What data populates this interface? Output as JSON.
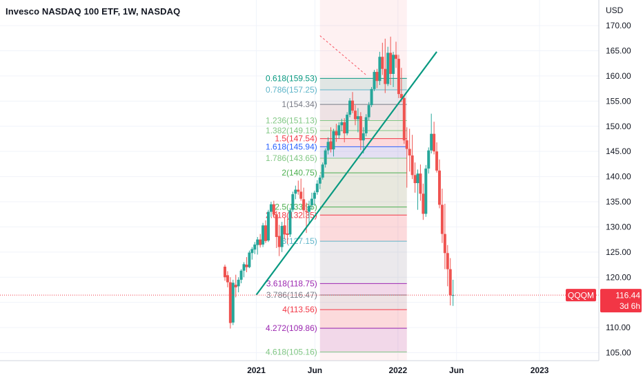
{
  "title": "Invesco NASDAQ 100 ETF, 1W, NASDAQ",
  "currency": "USD",
  "colors": {
    "up": "#26a69a",
    "down": "#ef5350",
    "trendline": "#089981",
    "badge": "#f23645",
    "grid": "#f0f3fa",
    "axis_border": "#d1d4dc"
  },
  "chart_data": {
    "type": "candlestick",
    "y_axis": {
      "min": 104,
      "max": 172,
      "ticks": [
        105,
        110,
        115,
        120,
        125,
        130,
        135,
        140,
        145,
        150,
        155,
        160,
        165,
        170
      ],
      "tick_labels": [
        "105.00",
        "110.00",
        "115.00",
        "120.00",
        "125.00",
        "130.00",
        "135.00",
        "140.00",
        "145.00",
        "150.00",
        "155.00",
        "160.00",
        "165.00",
        "170.00"
      ]
    },
    "x_axis": {
      "start": "2020-10-12",
      "end": "2023-03-13",
      "ticks": [
        {
          "date": "2021-01-01",
          "label": "2021"
        },
        {
          "date": "2021-06-01",
          "label": "Jun"
        },
        {
          "date": "2022-01-01",
          "label": "2022"
        },
        {
          "date": "2022-06-01",
          "label": "Jun"
        },
        {
          "date": "2023-01-01",
          "label": "2023"
        }
      ]
    },
    "current_price": {
      "symbol": "QQQM",
      "value": "116.44",
      "countdown": "3d 6h",
      "price": 116.44
    },
    "highlight_zone": {
      "from": "2021-06-14",
      "to": "2022-01-24"
    },
    "fib_extension": {
      "from": "2021-06-14",
      "to": "2022-01-24",
      "levels": [
        {
          "ratio": 0.618,
          "label": "0.618(159.53)",
          "price": 159.53,
          "color": "#089981"
        },
        {
          "ratio": 0.786,
          "label": "0.786(157.25)",
          "price": 157.25,
          "color": "#5fb5c9"
        },
        {
          "ratio": 1,
          "label": "1(154.34)",
          "price": 154.34,
          "color": "#787b86"
        },
        {
          "ratio": 1.236,
          "label": "1.236(151.13)",
          "price": 151.13,
          "color": "#81c784"
        },
        {
          "ratio": 1.382,
          "label": "1.382(149.15)",
          "price": 149.15,
          "color": "#81c784"
        },
        {
          "ratio": 1.5,
          "label": "1.5(147.54)",
          "price": 147.54,
          "color": "#f23645"
        },
        {
          "ratio": 1.618,
          "label": "1.618(145.94)",
          "price": 145.94,
          "color": "#2962ff"
        },
        {
          "ratio": 1.786,
          "label": "1.786(143.65)",
          "price": 143.65,
          "color": "#81c784"
        },
        {
          "ratio": 2,
          "label": "2(140.75)",
          "price": 140.75,
          "color": "#4caf50"
        },
        {
          "ratio": 2.5,
          "label": "2.5(133.95)",
          "price": 133.95,
          "color": "#4caf50"
        },
        {
          "ratio": 2.618,
          "label": "2.618(132.35)",
          "price": 132.35,
          "color": "#f23645"
        },
        {
          "ratio": 3,
          "label": "3(127.15)",
          "price": 127.15,
          "color": "#5fb5c9"
        },
        {
          "ratio": 3.618,
          "label": "3.618(118.75)",
          "price": 118.75,
          "color": "#9c27b0"
        },
        {
          "ratio": 3.786,
          "label": "3.786(116.47)",
          "price": 116.47,
          "color": "#787b86"
        },
        {
          "ratio": 4,
          "label": "4(113.56)",
          "price": 113.56,
          "color": "#f23645"
        },
        {
          "ratio": 4.272,
          "label": "4.272(109.86)",
          "price": 109.86,
          "color": "#9c27b0"
        },
        {
          "ratio": 4.618,
          "label": "4.618(105.16)",
          "price": 105.16,
          "color": "#81c784"
        }
      ]
    },
    "trendline": {
      "from": {
        "date": "2021-01-01",
        "price": 116.5
      },
      "to": {
        "date": "2022-04-11",
        "price": 164.8
      }
    },
    "dashed_line": {
      "from": {
        "date": "2021-06-14",
        "price": 168.0
      },
      "to": {
        "date": "2021-10-11",
        "price": 160.2
      }
    },
    "candles": [
      {
        "date": "2020-10-12",
        "o": 122.1,
        "h": 122.5,
        "l": 119.3,
        "c": 120.0
      },
      {
        "date": "2020-10-19",
        "o": 120.4,
        "h": 121.2,
        "l": 118.0,
        "c": 119.0
      },
      {
        "date": "2020-10-26",
        "o": 119.0,
        "h": 120.0,
        "l": 109.8,
        "c": 110.9
      },
      {
        "date": "2020-11-02",
        "o": 111.0,
        "h": 119.5,
        "l": 110.5,
        "c": 118.9
      },
      {
        "date": "2020-11-09",
        "o": 118.5,
        "h": 120.5,
        "l": 116.0,
        "c": 118.0
      },
      {
        "date": "2020-11-16",
        "o": 118.2,
        "h": 120.0,
        "l": 117.0,
        "c": 119.5
      },
      {
        "date": "2020-11-23",
        "o": 119.5,
        "h": 121.6,
        "l": 118.8,
        "c": 121.3
      },
      {
        "date": "2020-11-30",
        "o": 121.3,
        "h": 123.0,
        "l": 120.0,
        "c": 122.6
      },
      {
        "date": "2020-12-07",
        "o": 122.5,
        "h": 124.0,
        "l": 121.0,
        "c": 122.0
      },
      {
        "date": "2020-12-14",
        "o": 122.0,
        "h": 125.3,
        "l": 121.8,
        "c": 124.9
      },
      {
        "date": "2020-12-21",
        "o": 124.8,
        "h": 126.0,
        "l": 123.5,
        "c": 125.6
      },
      {
        "date": "2020-12-28",
        "o": 125.5,
        "h": 127.0,
        "l": 124.6,
        "c": 126.5
      },
      {
        "date": "2021-01-04",
        "o": 126.4,
        "h": 128.0,
        "l": 124.5,
        "c": 127.5
      },
      {
        "date": "2021-01-11",
        "o": 127.5,
        "h": 128.6,
        "l": 125.9,
        "c": 126.4
      },
      {
        "date": "2021-01-18",
        "o": 126.5,
        "h": 130.8,
        "l": 126.0,
        "c": 130.3
      },
      {
        "date": "2021-01-25",
        "o": 130.3,
        "h": 131.3,
        "l": 126.8,
        "c": 127.2
      },
      {
        "date": "2021-02-01",
        "o": 127.3,
        "h": 133.4,
        "l": 127.0,
        "c": 133.0
      },
      {
        "date": "2021-02-08",
        "o": 133.0,
        "h": 135.0,
        "l": 132.0,
        "c": 134.5
      },
      {
        "date": "2021-02-15",
        "o": 134.5,
        "h": 135.2,
        "l": 131.8,
        "c": 132.5
      },
      {
        "date": "2021-02-22",
        "o": 132.5,
        "h": 133.2,
        "l": 125.8,
        "c": 128.0
      },
      {
        "date": "2021-03-01",
        "o": 128.2,
        "h": 130.4,
        "l": 124.2,
        "c": 126.0
      },
      {
        "date": "2021-03-08",
        "o": 126.0,
        "h": 131.0,
        "l": 125.0,
        "c": 130.2
      },
      {
        "date": "2021-03-15",
        "o": 130.3,
        "h": 131.8,
        "l": 127.5,
        "c": 128.5
      },
      {
        "date": "2021-03-22",
        "o": 128.7,
        "h": 131.6,
        "l": 126.6,
        "c": 128.4
      },
      {
        "date": "2021-03-29",
        "o": 128.5,
        "h": 133.8,
        "l": 128.0,
        "c": 133.3
      },
      {
        "date": "2021-04-05",
        "o": 133.4,
        "h": 137.0,
        "l": 133.0,
        "c": 136.5
      },
      {
        "date": "2021-04-12",
        "o": 136.6,
        "h": 138.2,
        "l": 135.5,
        "c": 137.4
      },
      {
        "date": "2021-04-19",
        "o": 137.4,
        "h": 139.2,
        "l": 136.4,
        "c": 137.0
      },
      {
        "date": "2021-04-26",
        "o": 137.0,
        "h": 139.6,
        "l": 135.2,
        "c": 135.6
      },
      {
        "date": "2021-05-03",
        "o": 135.5,
        "h": 137.8,
        "l": 131.8,
        "c": 133.3
      },
      {
        "date": "2021-05-10",
        "o": 133.2,
        "h": 134.8,
        "l": 128.8,
        "c": 133.0
      },
      {
        "date": "2021-05-17",
        "o": 133.0,
        "h": 135.2,
        "l": 130.6,
        "c": 134.2
      },
      {
        "date": "2021-05-24",
        "o": 134.3,
        "h": 136.8,
        "l": 133.5,
        "c": 135.6
      },
      {
        "date": "2021-05-31",
        "o": 135.6,
        "h": 137.2,
        "l": 134.2,
        "c": 136.8
      },
      {
        "date": "2021-06-07",
        "o": 136.9,
        "h": 139.3,
        "l": 136.4,
        "c": 138.6
      },
      {
        "date": "2021-06-14",
        "o": 138.6,
        "h": 140.3,
        "l": 137.5,
        "c": 139.8
      },
      {
        "date": "2021-06-21",
        "o": 139.8,
        "h": 142.8,
        "l": 139.4,
        "c": 142.4
      },
      {
        "date": "2021-06-28",
        "o": 142.4,
        "h": 145.6,
        "l": 141.8,
        "c": 145.2
      },
      {
        "date": "2021-07-05",
        "o": 145.2,
        "h": 147.8,
        "l": 144.4,
        "c": 146.9
      },
      {
        "date": "2021-07-12",
        "o": 147.0,
        "h": 149.8,
        "l": 144.8,
        "c": 145.4
      },
      {
        "date": "2021-07-19",
        "o": 145.4,
        "h": 149.5,
        "l": 144.0,
        "c": 149.0
      },
      {
        "date": "2021-07-26",
        "o": 149.0,
        "h": 150.5,
        "l": 146.9,
        "c": 148.2
      },
      {
        "date": "2021-08-02",
        "o": 148.2,
        "h": 150.8,
        "l": 147.5,
        "c": 150.2
      },
      {
        "date": "2021-08-09",
        "o": 150.2,
        "h": 151.5,
        "l": 149.0,
        "c": 150.8
      },
      {
        "date": "2021-08-16",
        "o": 150.8,
        "h": 151.6,
        "l": 146.8,
        "c": 148.6
      },
      {
        "date": "2021-08-23",
        "o": 148.6,
        "h": 152.8,
        "l": 148.2,
        "c": 152.3
      },
      {
        "date": "2021-08-30",
        "o": 152.3,
        "h": 155.6,
        "l": 151.8,
        "c": 155.1
      },
      {
        "date": "2021-09-06",
        "o": 155.1,
        "h": 156.8,
        "l": 152.6,
        "c": 153.1
      },
      {
        "date": "2021-09-13",
        "o": 153.1,
        "h": 154.2,
        "l": 150.2,
        "c": 151.4
      },
      {
        "date": "2021-09-20",
        "o": 151.4,
        "h": 153.6,
        "l": 148.8,
        "c": 152.0
      },
      {
        "date": "2021-09-27",
        "o": 152.0,
        "h": 152.8,
        "l": 145.3,
        "c": 147.2
      },
      {
        "date": "2021-10-04",
        "o": 147.2,
        "h": 149.8,
        "l": 144.6,
        "c": 148.6
      },
      {
        "date": "2021-10-11",
        "o": 148.6,
        "h": 152.4,
        "l": 148.0,
        "c": 151.8
      },
      {
        "date": "2021-10-18",
        "o": 151.8,
        "h": 154.8,
        "l": 151.2,
        "c": 154.2
      },
      {
        "date": "2021-10-25",
        "o": 154.2,
        "h": 157.8,
        "l": 153.8,
        "c": 157.4
      },
      {
        "date": "2021-11-01",
        "o": 157.4,
        "h": 161.2,
        "l": 157.0,
        "c": 160.8
      },
      {
        "date": "2021-11-08",
        "o": 160.8,
        "h": 161.4,
        "l": 157.6,
        "c": 159.0
      },
      {
        "date": "2021-11-15",
        "o": 159.0,
        "h": 164.8,
        "l": 158.2,
        "c": 163.8
      },
      {
        "date": "2021-11-22",
        "o": 163.8,
        "h": 166.6,
        "l": 160.2,
        "c": 161.4
      },
      {
        "date": "2021-11-29",
        "o": 161.4,
        "h": 167.4,
        "l": 156.6,
        "c": 158.4
      },
      {
        "date": "2021-12-06",
        "o": 158.4,
        "h": 165.8,
        "l": 158.0,
        "c": 164.6
      },
      {
        "date": "2021-12-13",
        "o": 164.6,
        "h": 167.8,
        "l": 158.2,
        "c": 160.4
      },
      {
        "date": "2021-12-20",
        "o": 160.4,
        "h": 164.8,
        "l": 157.8,
        "c": 164.2
      },
      {
        "date": "2021-12-27",
        "o": 164.2,
        "h": 166.8,
        "l": 161.6,
        "c": 163.4
      },
      {
        "date": "2022-01-03",
        "o": 163.4,
        "h": 164.2,
        "l": 155.6,
        "c": 156.4
      },
      {
        "date": "2022-01-10",
        "o": 156.4,
        "h": 161.6,
        "l": 154.8,
        "c": 155.6
      },
      {
        "date": "2022-01-17",
        "o": 155.6,
        "h": 156.2,
        "l": 146.5,
        "c": 147.2
      },
      {
        "date": "2022-01-24",
        "o": 147.2,
        "h": 149.8,
        "l": 137.8,
        "c": 145.5
      },
      {
        "date": "2022-01-31",
        "o": 145.5,
        "h": 149.5,
        "l": 141.0,
        "c": 144.2
      },
      {
        "date": "2022-02-07",
        "o": 144.2,
        "h": 148.3,
        "l": 139.5,
        "c": 140.3
      },
      {
        "date": "2022-02-14",
        "o": 140.3,
        "h": 142.8,
        "l": 136.8,
        "c": 138.7
      },
      {
        "date": "2022-02-21",
        "o": 138.7,
        "h": 141.4,
        "l": 133.4,
        "c": 140.6
      },
      {
        "date": "2022-02-28",
        "o": 140.6,
        "h": 142.4,
        "l": 135.2,
        "c": 136.6
      },
      {
        "date": "2022-03-07",
        "o": 136.6,
        "h": 138.6,
        "l": 131.4,
        "c": 132.6
      },
      {
        "date": "2022-03-14",
        "o": 132.6,
        "h": 142.3,
        "l": 132.0,
        "c": 141.6
      },
      {
        "date": "2022-03-21",
        "o": 141.6,
        "h": 145.8,
        "l": 140.6,
        "c": 145.2
      },
      {
        "date": "2022-03-28",
        "o": 145.2,
        "h": 152.5,
        "l": 144.6,
        "c": 148.5
      },
      {
        "date": "2022-04-04",
        "o": 148.5,
        "h": 150.9,
        "l": 144.4,
        "c": 145.0
      },
      {
        "date": "2022-04-11",
        "o": 145.0,
        "h": 146.8,
        "l": 140.8,
        "c": 141.2
      },
      {
        "date": "2022-04-18",
        "o": 141.2,
        "h": 143.4,
        "l": 133.7,
        "c": 134.4
      },
      {
        "date": "2022-04-25",
        "o": 134.4,
        "h": 137.6,
        "l": 126.8,
        "c": 128.6
      },
      {
        "date": "2022-05-02",
        "o": 128.6,
        "h": 134.6,
        "l": 121.6,
        "c": 124.8
      },
      {
        "date": "2022-05-09",
        "o": 124.8,
        "h": 126.4,
        "l": 118.2,
        "c": 121.6
      },
      {
        "date": "2022-05-16",
        "o": 121.6,
        "h": 123.8,
        "l": 114.4,
        "c": 116.4
      },
      {
        "date": "2022-05-23",
        "o": 116.4,
        "h": 119.5,
        "l": 114.3,
        "c": 116.44
      }
    ]
  }
}
